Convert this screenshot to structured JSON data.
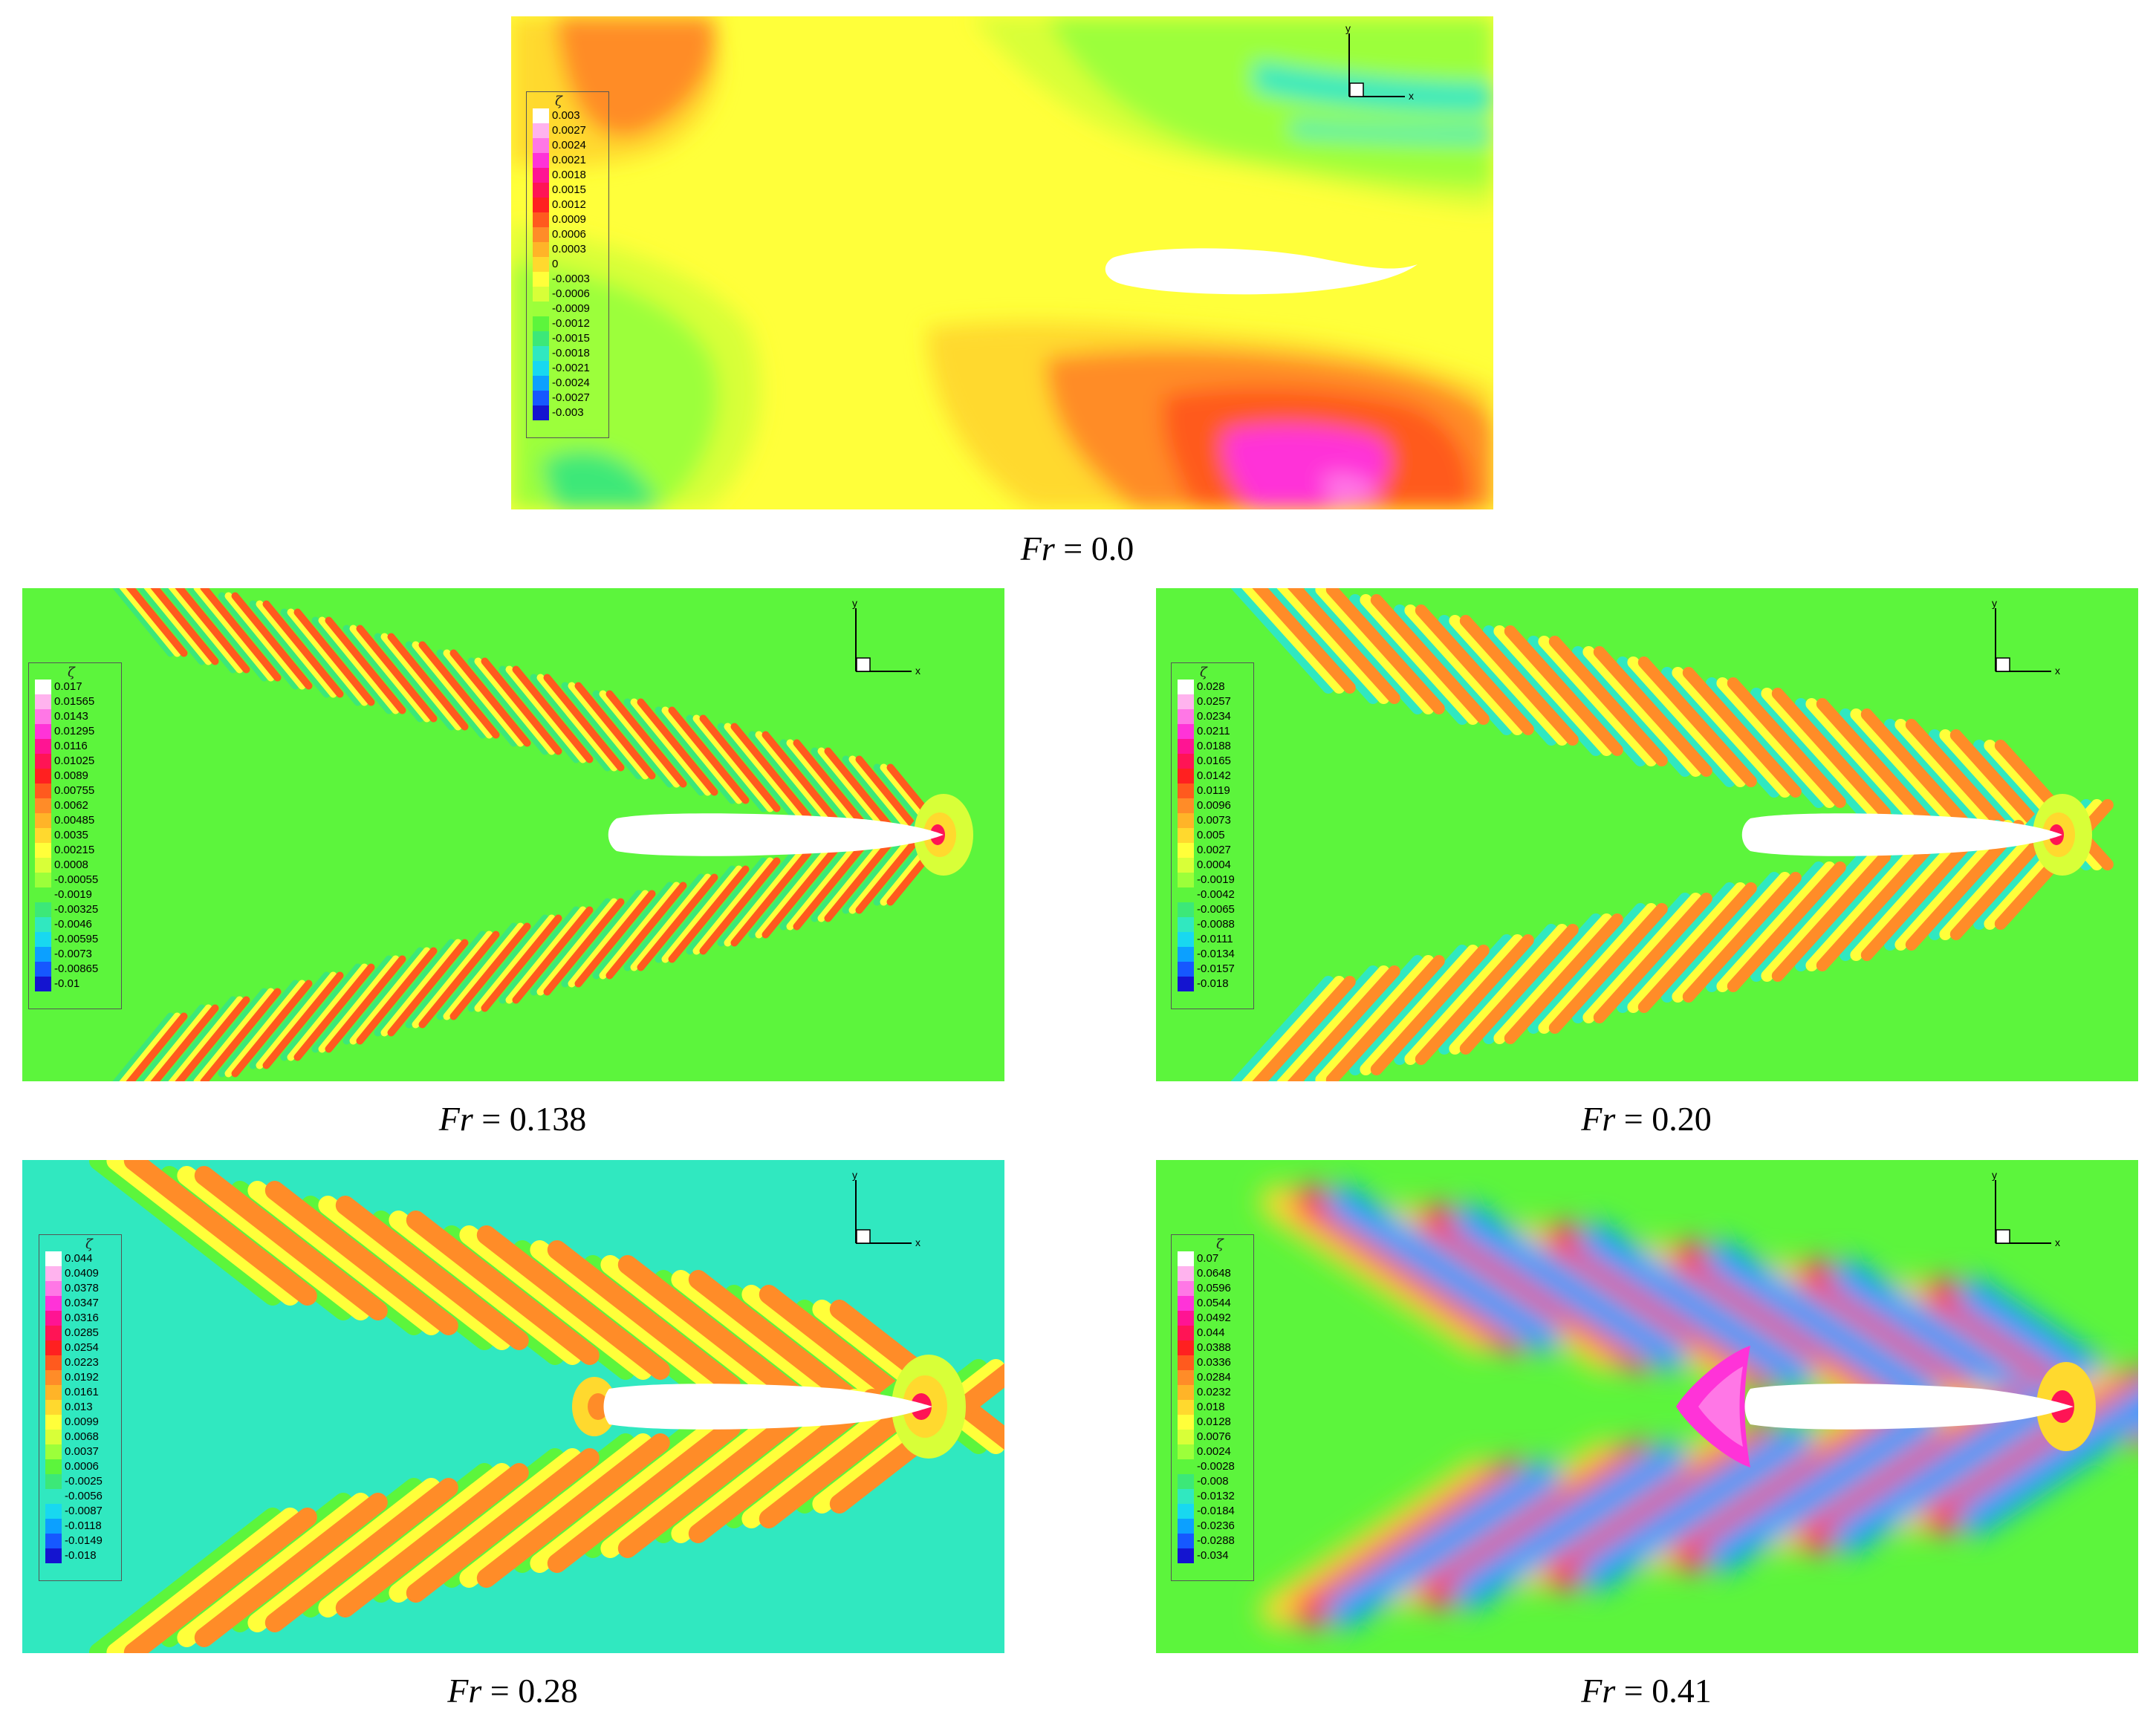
{
  "legend_title": "ζ",
  "axis_labels": {
    "x": "x",
    "y": "y"
  },
  "panels": [
    {
      "id": "fr-0",
      "caption_var": "Fr",
      "caption_eq": " = 0.0",
      "levels": [
        "0.003",
        "0.0027",
        "0.0024",
        "0.0021",
        "0.0018",
        "0.0015",
        "0.0012",
        "0.0009",
        "0.0006",
        "0.0003",
        "0",
        "-0.0003",
        "-0.0006",
        "-0.0009",
        "-0.0012",
        "-0.0015",
        "-0.0018",
        "-0.0021",
        "-0.0024",
        "-0.0027",
        "-0.003"
      ]
    },
    {
      "id": "fr-0138",
      "caption_var": "Fr",
      "caption_eq": " = 0.138",
      "levels": [
        "0.017",
        "0.01565",
        "0.0143",
        "0.01295",
        "0.0116",
        "0.01025",
        "0.0089",
        "0.00755",
        "0.0062",
        "0.00485",
        "0.0035",
        "0.00215",
        "0.0008",
        "-0.00055",
        "-0.0019",
        "-0.00325",
        "-0.0046",
        "-0.00595",
        "-0.0073",
        "-0.00865",
        "-0.01"
      ]
    },
    {
      "id": "fr-020",
      "caption_var": "Fr",
      "caption_eq": " = 0.20",
      "levels": [
        "0.028",
        "0.0257",
        "0.0234",
        "0.0211",
        "0.0188",
        "0.0165",
        "0.0142",
        "0.0119",
        "0.0096",
        "0.0073",
        "0.005",
        "0.0027",
        "0.0004",
        "-0.0019",
        "-0.0042",
        "-0.0065",
        "-0.0088",
        "-0.0111",
        "-0.0134",
        "-0.0157",
        "-0.018"
      ]
    },
    {
      "id": "fr-028",
      "caption_var": "Fr",
      "caption_eq": " = 0.28",
      "levels": [
        "0.044",
        "0.0409",
        "0.0378",
        "0.0347",
        "0.0316",
        "0.0285",
        "0.0254",
        "0.0223",
        "0.0192",
        "0.0161",
        "0.013",
        "0.0099",
        "0.0068",
        "0.0037",
        "0.0006",
        "-0.0025",
        "-0.0056",
        "-0.0087",
        "-0.0118",
        "-0.0149",
        "-0.018"
      ]
    },
    {
      "id": "fr-041",
      "caption_var": "Fr",
      "caption_eq": " = 0.41",
      "levels": [
        "0.07",
        "0.0648",
        "0.0596",
        "0.0544",
        "0.0492",
        "0.044",
        "0.0388",
        "0.0336",
        "0.0284",
        "0.0232",
        "0.018",
        "0.0128",
        "0.0076",
        "0.0024",
        "-0.0028",
        "-0.008",
        "-0.0132",
        "-0.0184",
        "-0.0236",
        "-0.0288",
        "-0.034"
      ]
    }
  ],
  "colormap": [
    "#ffffff",
    "#ffb3ee",
    "#ff77e6",
    "#ff33d8",
    "#ff1493",
    "#ff1455",
    "#ff2020",
    "#ff5a1e",
    "#ff8c28",
    "#ffb428",
    "#ffd92e",
    "#ffff3a",
    "#d8ff38",
    "#9cff3a",
    "#5cf53c",
    "#3ce878",
    "#30e8c0",
    "#18d8f0",
    "#0ca0ff",
    "#1658ff",
    "#1414d0"
  ]
}
